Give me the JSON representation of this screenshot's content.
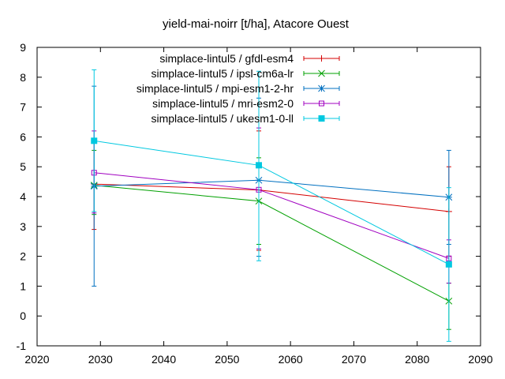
{
  "chart_data": {
    "type": "line",
    "title": "yield-mai-noirr [t/ha], Atacore Ouest",
    "xlabel": "",
    "ylabel": "",
    "xlim": [
      2020,
      2090
    ],
    "ylim": [
      -1,
      9
    ],
    "x_ticks": [
      2020,
      2030,
      2040,
      2050,
      2060,
      2070,
      2080,
      2090
    ],
    "y_ticks": [
      -1,
      0,
      1,
      2,
      3,
      4,
      5,
      6,
      7,
      8,
      9
    ],
    "grid": false,
    "legend_position": "top-right",
    "series": [
      {
        "name": "simplace-lintul5 / gfdl-esm4",
        "color": "#d40000",
        "marker": "plus",
        "points": [
          {
            "x": 2029,
            "y": 4.42,
            "err_low": 2.9,
            "err_high": 5.9
          },
          {
            "x": 2055,
            "y": 4.22,
            "err_low": 2.2,
            "err_high": 6.2
          },
          {
            "x": 2085,
            "y": 3.5,
            "err_low": 2.0,
            "err_high": 5.0
          }
        ]
      },
      {
        "name": "simplace-lintul5 / ipsl-cm6a-lr",
        "color": "#00a000",
        "marker": "cross",
        "points": [
          {
            "x": 2029,
            "y": 4.38,
            "err_low": 3.4,
            "err_high": 5.55
          },
          {
            "x": 2055,
            "y": 3.85,
            "err_low": 2.4,
            "err_high": 5.3
          },
          {
            "x": 2085,
            "y": 0.5,
            "err_low": -0.45,
            "err_high": 1.1
          }
        ]
      },
      {
        "name": "simplace-lintul5 / mpi-esm1-2-hr",
        "color": "#0070c0",
        "marker": "star",
        "points": [
          {
            "x": 2029,
            "y": 4.35,
            "err_low": 1.0,
            "err_high": 7.7
          },
          {
            "x": 2055,
            "y": 4.55,
            "err_low": 2.0,
            "err_high": 7.3
          },
          {
            "x": 2085,
            "y": 3.98,
            "err_low": 2.4,
            "err_high": 5.55
          }
        ]
      },
      {
        "name": "simplace-lintul5 / mri-esm2-0",
        "color": "#a000c0",
        "marker": "square-open",
        "points": [
          {
            "x": 2029,
            "y": 4.8,
            "err_low": 3.45,
            "err_high": 6.2
          },
          {
            "x": 2055,
            "y": 4.23,
            "err_low": 2.25,
            "err_high": 6.3
          },
          {
            "x": 2085,
            "y": 1.93,
            "err_low": 1.1,
            "err_high": 2.55
          }
        ]
      },
      {
        "name": "simplace-lintul5 / ukesm1-0-ll",
        "color": "#00c8e0",
        "marker": "square-filled",
        "points": [
          {
            "x": 2029,
            "y": 5.87,
            "err_low": 3.5,
            "err_high": 8.25
          },
          {
            "x": 2055,
            "y": 5.05,
            "err_low": 1.85,
            "err_high": 8.2
          },
          {
            "x": 2085,
            "y": 1.73,
            "err_low": -0.85,
            "err_high": 4.3
          }
        ]
      }
    ]
  }
}
